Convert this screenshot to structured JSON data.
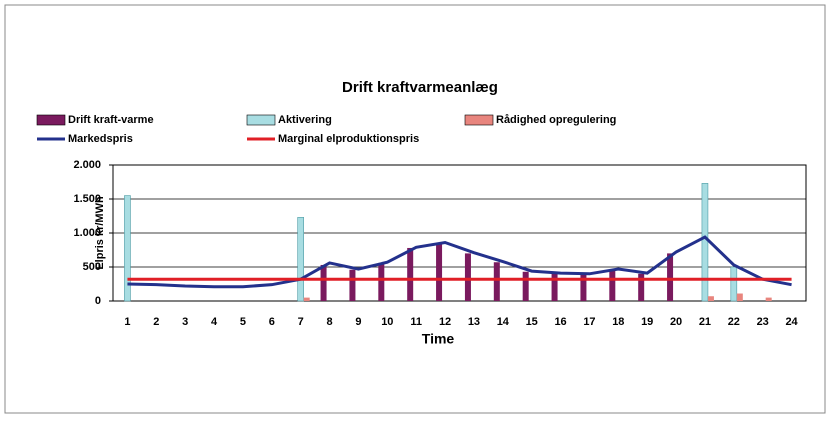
{
  "chart_data": {
    "type": "bar",
    "title": "Drift kraftvarmeanlæg",
    "y_label": "Elpris kr/MWh",
    "x_label": "Time",
    "categories": [
      "1",
      "2",
      "3",
      "4",
      "5",
      "6",
      "7",
      "8",
      "9",
      "10",
      "11",
      "12",
      "13",
      "14",
      "15",
      "16",
      "17",
      "18",
      "19",
      "20",
      "21",
      "22",
      "23",
      "24"
    ],
    "ylim": [
      0,
      2000
    ],
    "yticks": [
      0,
      500,
      {
        "value": 1000,
        "label": "1.000"
      },
      {
        "value": 1500,
        "label": "1.500"
      },
      {
        "value": 2000,
        "label": "2.000"
      }
    ],
    "grid": true,
    "series": [
      {
        "name": "Drift kraft-varme",
        "type": "bar",
        "color": "#7a1a5e",
        "values": [
          0,
          0,
          0,
          0,
          0,
          0,
          0,
          530,
          460,
          560,
          780,
          850,
          700,
          570,
          430,
          400,
          390,
          460,
          400,
          700,
          0,
          0,
          0,
          0
        ]
      },
      {
        "name": "Aktivering",
        "type": "bar",
        "color": "#a8dde2",
        "values": [
          1550,
          0,
          0,
          0,
          0,
          0,
          1230,
          0,
          0,
          0,
          0,
          0,
          0,
          0,
          0,
          0,
          0,
          0,
          0,
          0,
          1730,
          500,
          0,
          0
        ]
      },
      {
        "name": "Rådighed opregulering",
        "type": "bar",
        "color": "#e8857e",
        "values": [
          0,
          0,
          0,
          0,
          0,
          0,
          50,
          0,
          0,
          0,
          0,
          0,
          0,
          0,
          0,
          0,
          0,
          0,
          0,
          0,
          70,
          110,
          50,
          0
        ]
      },
      {
        "name": "Markedspris",
        "type": "line",
        "color": "#23318c",
        "values": [
          250,
          240,
          220,
          210,
          210,
          240,
          320,
          560,
          470,
          570,
          790,
          860,
          710,
          580,
          440,
          410,
          400,
          470,
          410,
          720,
          940,
          530,
          320,
          240
        ]
      },
      {
        "name": "Marginal elproduktionspris",
        "type": "line",
        "color": "#e01f26",
        "values": [
          320,
          320,
          320,
          320,
          320,
          320,
          320,
          320,
          320,
          320,
          320,
          320,
          320,
          320,
          320,
          320,
          320,
          320,
          320,
          320,
          320,
          320,
          320,
          320
        ]
      }
    ]
  }
}
